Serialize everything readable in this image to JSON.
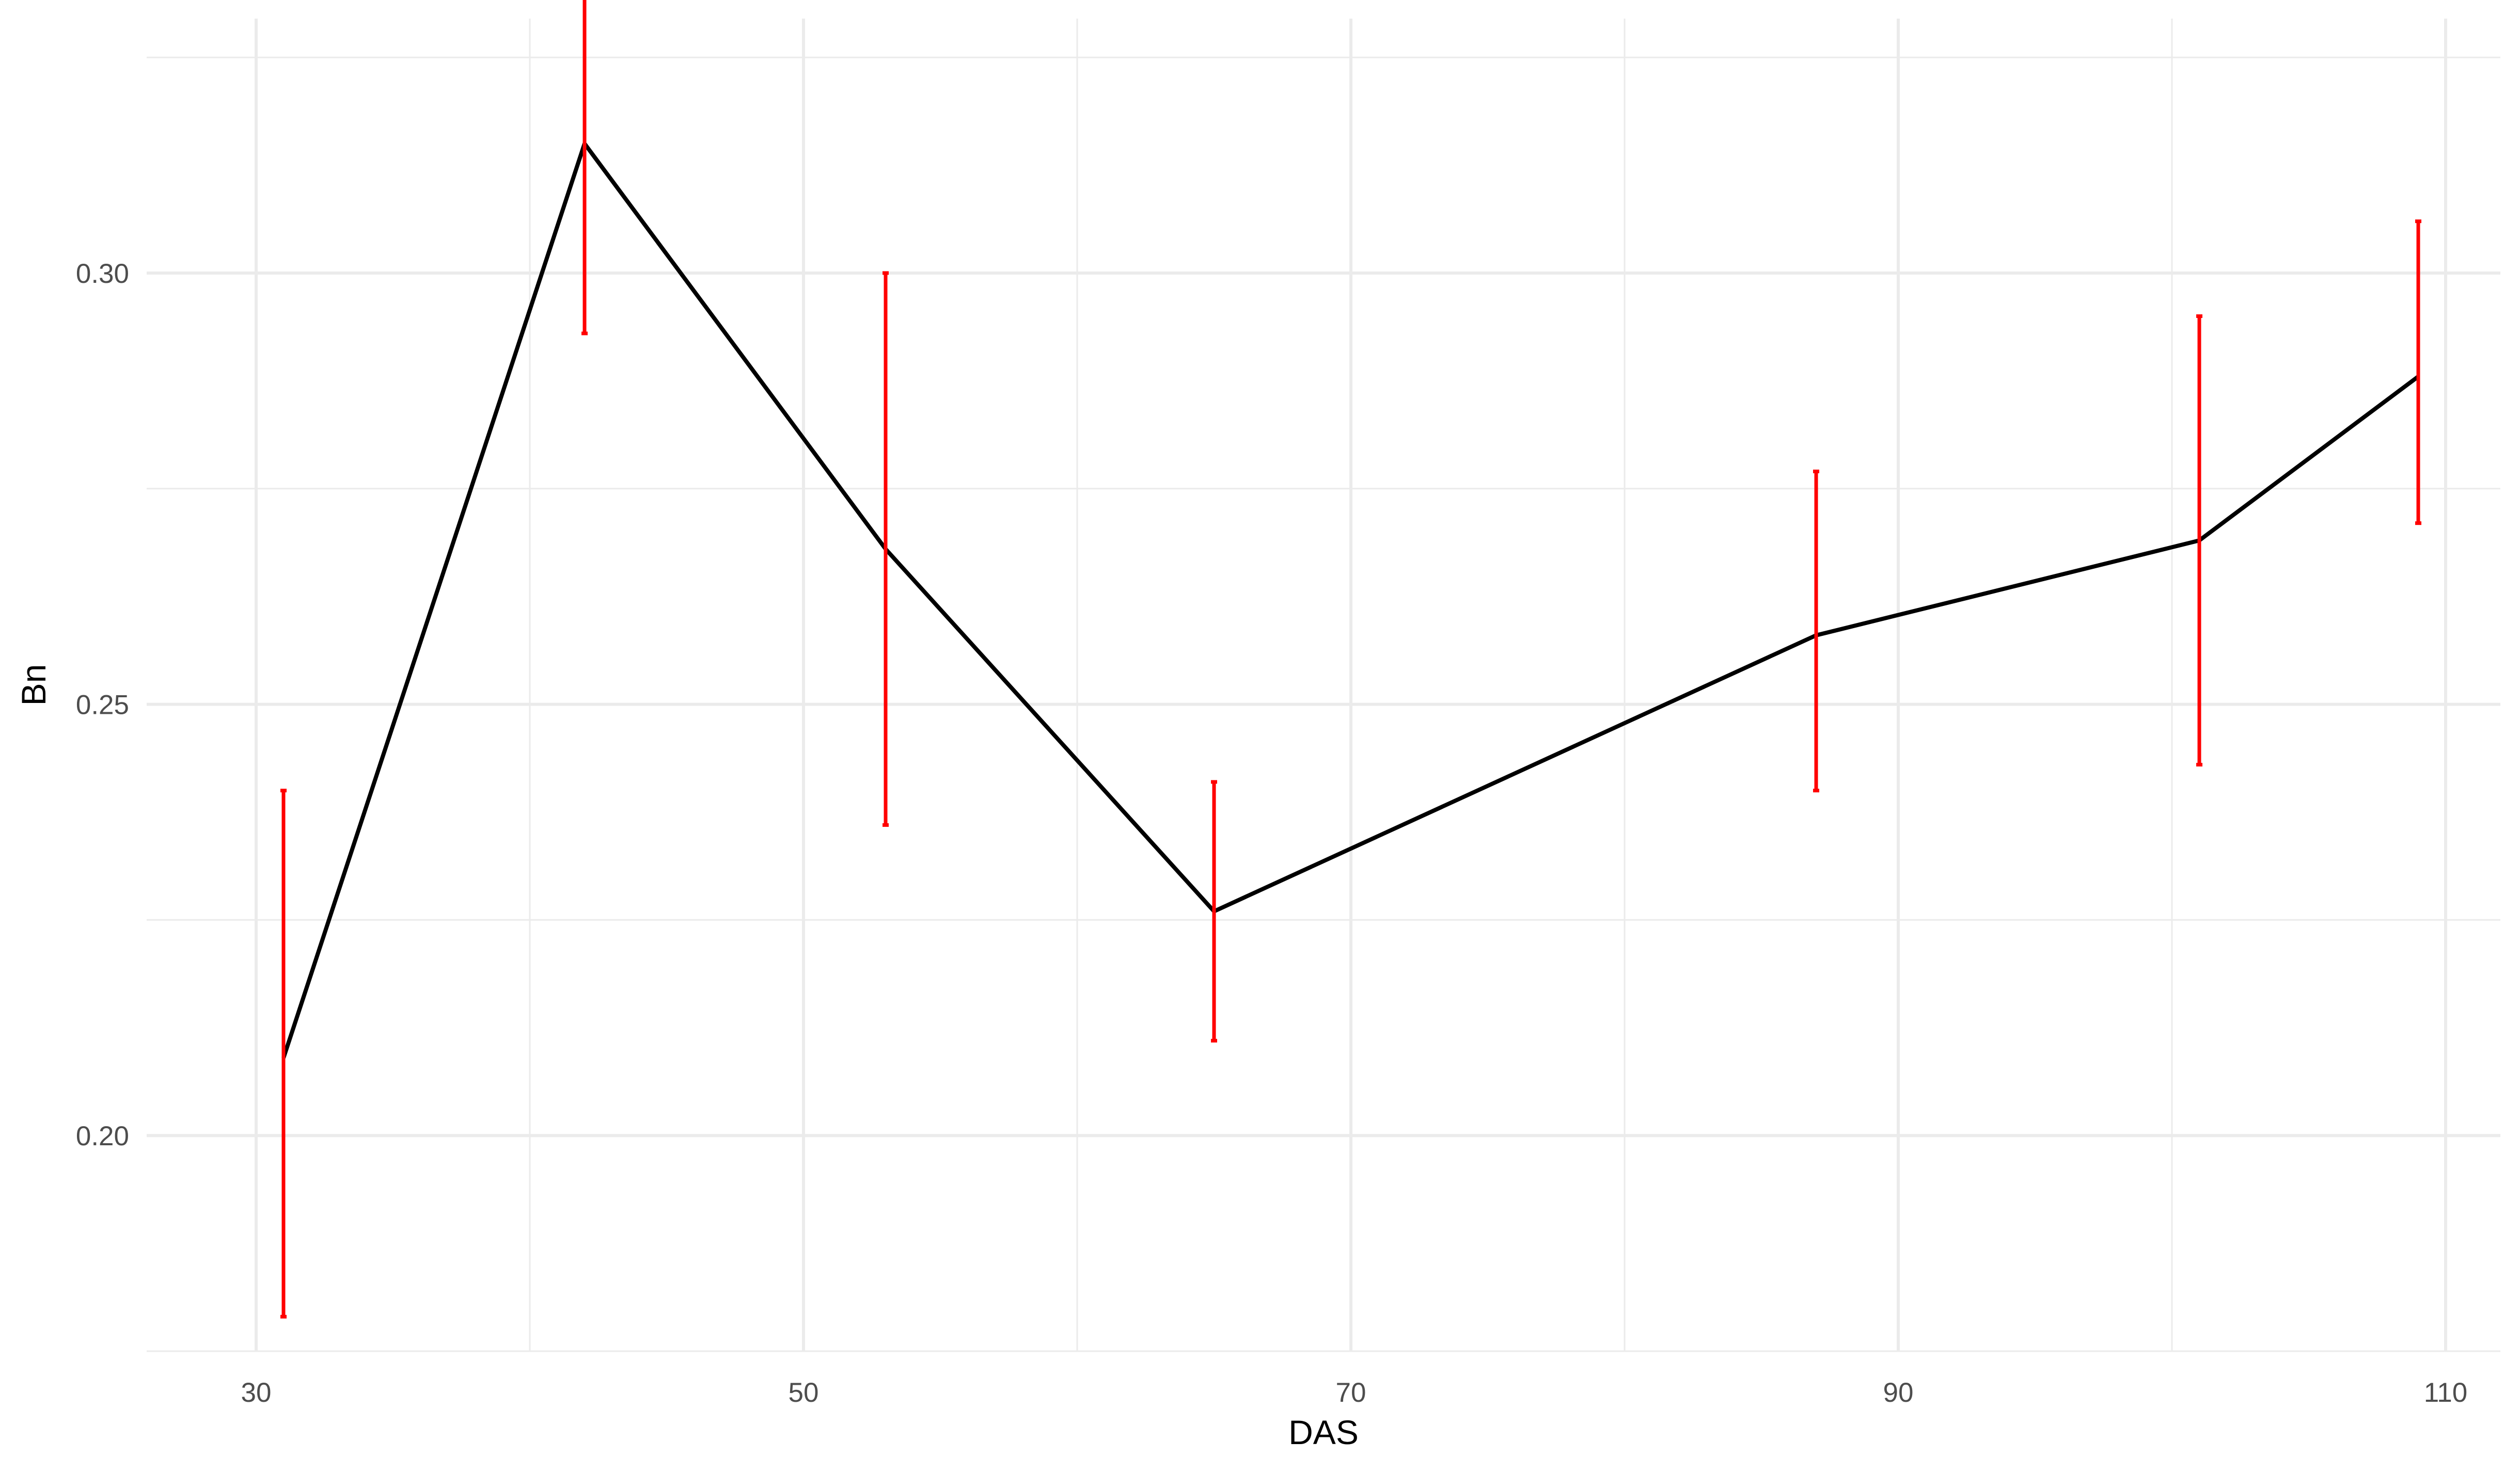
{
  "chart_data": {
    "type": "line",
    "title": "",
    "xlabel": "DAS",
    "ylabel": "Bn",
    "xlim": [
      26,
      112
    ],
    "ylim": [
      0.175,
      0.3295
    ],
    "x_ticks": [
      30,
      50,
      70,
      90,
      110
    ],
    "x_tick_labels": [
      "30",
      "50",
      "70",
      "90",
      "110"
    ],
    "x_minor_ticks": [
      40,
      60,
      80,
      100
    ],
    "y_ticks": [
      0.2,
      0.25,
      0.3
    ],
    "y_tick_labels": [
      "0.20",
      "0.25",
      "0.30"
    ],
    "y_minor_ticks": [
      0.175,
      0.225,
      0.275,
      0.325
    ],
    "grid": true,
    "legend": "none",
    "series": [
      {
        "x": [
          31,
          42,
          53,
          65,
          87,
          101,
          109
        ],
        "y": [
          0.209,
          0.315,
          0.268,
          0.226,
          0.258,
          0.269,
          0.288
        ],
        "y_lower": [
          0.179,
          0.293,
          0.236,
          0.211,
          0.24,
          0.243,
          0.271
        ],
        "y_upper": [
          0.24,
          0.337,
          0.3,
          0.241,
          0.277,
          0.295,
          0.306
        ]
      }
    ],
    "colors": {
      "line": "#000000",
      "error_bars": "#ff0000",
      "grid": "#ebebeb",
      "tick_text": "#4d4d4d"
    }
  }
}
